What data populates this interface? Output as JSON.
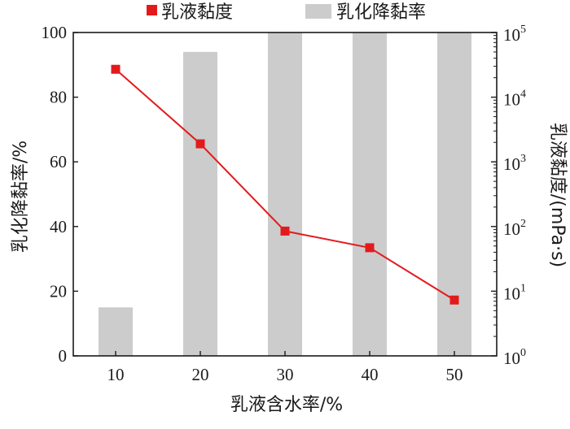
{
  "chart_data": {
    "type": "bar+line",
    "legend": {
      "placement": "top",
      "entries": [
        {
          "label": "乳液黏度",
          "marker": "square",
          "color": "#e31a1c"
        },
        {
          "label": "乳化降黏率",
          "marker": "bar",
          "color": "#cccccc"
        }
      ]
    },
    "xlabel": "乳液含水率/%",
    "ylabel_left": "乳化降黏率/%",
    "ylabel_right": "乳液黏度/(mPa·s)",
    "categories": [
      10,
      20,
      30,
      40,
      50
    ],
    "x_ticks": [
      "10",
      "20",
      "30",
      "40",
      "50"
    ],
    "y_left": {
      "min": 0,
      "max": 100,
      "ticks": [
        "0",
        "20",
        "40",
        "60",
        "80",
        "100"
      ]
    },
    "y_right": {
      "scale": "log",
      "min": 1,
      "max": 100000,
      "tick_bases": [
        "10",
        "10",
        "10",
        "10",
        "10",
        "10"
      ],
      "tick_exponents": [
        "0",
        "1",
        "2",
        "3",
        "4",
        "5"
      ]
    },
    "series": [
      {
        "name": "乳化降黏率",
        "kind": "bar",
        "axis": "left",
        "color": "#cccccc",
        "values": [
          15,
          94,
          100,
          100,
          100
        ]
      },
      {
        "name": "乳液黏度",
        "kind": "line",
        "axis": "right",
        "color": "#e31a1c",
        "values": [
          27000,
          1900,
          85,
          47,
          7.3
        ]
      }
    ]
  }
}
